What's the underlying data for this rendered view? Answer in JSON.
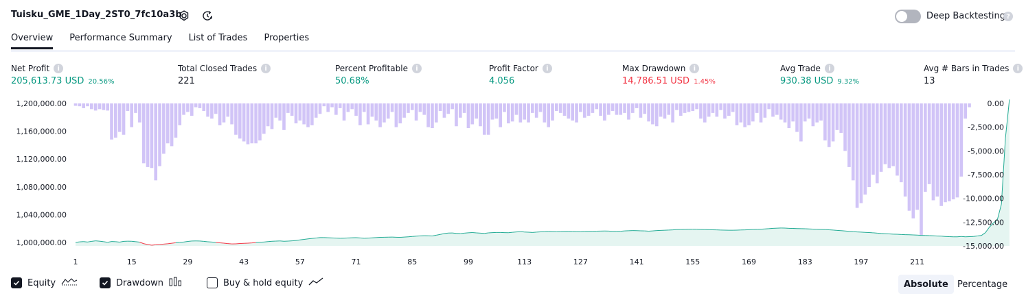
{
  "header": {
    "title": "Tuisku_GME_1Day_2ST0_7fc10a3b",
    "deep_backtesting_label": "Deep Backtesting"
  },
  "tabs": [
    {
      "label": "Overview",
      "active": true
    },
    {
      "label": "Performance Summary",
      "active": false
    },
    {
      "label": "List of Trades",
      "active": false
    },
    {
      "label": "Properties",
      "active": false
    }
  ],
  "stats": [
    {
      "label": "Net Profit",
      "value": "205,613.73 USD",
      "pct": "20.56%",
      "color": "green"
    },
    {
      "label": "Total Closed Trades",
      "value": "221",
      "pct": "",
      "color": "default"
    },
    {
      "label": "Percent Profitable",
      "value": "50.68%",
      "pct": "",
      "color": "green"
    },
    {
      "label": "Profit Factor",
      "value": "4.056",
      "pct": "",
      "color": "green"
    },
    {
      "label": "Max Drawdown",
      "value": "14,786.51 USD",
      "pct": "1.45%",
      "color": "red"
    },
    {
      "label": "Avg Trade",
      "value": "930.38 USD",
      "pct": "9.32%",
      "color": "green"
    },
    {
      "label": "Avg # Bars in Trades",
      "value": "13",
      "pct": "",
      "color": "default"
    }
  ],
  "chart_data": {
    "type": "bar+area",
    "left_axis_ticks": [
      "1,200,000.00",
      "1,160,000.00",
      "1,120,000.00",
      "1,080,000.00",
      "1,040,000.00",
      "1,000,000.00"
    ],
    "right_axis_ticks": [
      "0.00",
      "-2,500.00",
      "-5,000.00",
      "-7,500.00",
      "-10,000.00",
      "-12,500.00",
      "-15,000.00"
    ],
    "x_ticks": [
      "1",
      "15",
      "29",
      "43",
      "57",
      "71",
      "85",
      "99",
      "113",
      "127",
      "141",
      "155",
      "169",
      "183",
      "197",
      "211"
    ],
    "left_ylim": [
      995000,
      1200000
    ],
    "right_ylim": [
      -15000,
      0
    ],
    "trade_range": [
      1,
      221
    ],
    "series": [
      {
        "name": "Drawdown",
        "color": "#d1c4f7",
        "unit": "USD",
        "values": [
          -250,
          -300,
          -500,
          -300,
          -600,
          -750,
          -600,
          -700,
          -750,
          -3800,
          -3600,
          -3000,
          -3300,
          -800,
          -2500,
          -1000,
          -2000,
          -6300,
          -6700,
          -6800,
          -8100,
          -6600,
          -5300,
          -4200,
          -4500,
          -3600,
          -2300,
          -1200,
          -900,
          -1300,
          -400,
          -500,
          -800,
          -1400,
          -1600,
          -1100,
          -2300,
          -2000,
          -1400,
          -2200,
          -3300,
          -3700,
          -4000,
          -4300,
          -4200,
          -4200,
          -3900,
          -3200,
          -2400,
          -2700,
          -1500,
          -1800,
          -2800,
          -1000,
          -1300,
          -2100,
          -1800,
          -2200,
          -2500,
          -2300,
          -1500,
          -1100,
          -300,
          -900,
          -400,
          -1200,
          -500,
          -1800,
          -900,
          -600,
          -1300,
          -2300,
          -900,
          -2200,
          -1400,
          -1800,
          -2500,
          -2000,
          -1600,
          -900,
          -2500,
          -2100,
          -1500,
          -1000,
          -700,
          -1800,
          -900,
          -1200,
          -2500,
          -2600,
          -2000,
          -800,
          -1500,
          -1100,
          -600,
          -2400,
          -1500,
          -1000,
          -2600,
          -2200,
          -1600,
          -2400,
          -3300,
          -3300,
          -1700,
          -1600,
          -2500,
          -900,
          -2100,
          -1900,
          -1200,
          -2000,
          -1700,
          -2000,
          -1000,
          -1500,
          -900,
          -2000,
          -2500,
          -1800,
          -800,
          -1000,
          -1300,
          -1600,
          -1800,
          -2000,
          -900,
          -1500,
          -1300,
          -1000,
          -600,
          -1300,
          -1800,
          -1200,
          -800,
          -1200,
          -1200,
          -1000,
          -1700,
          -1000,
          -500,
          -1500,
          -1100,
          -1900,
          -2200,
          -2400,
          -1400,
          -1600,
          -1200,
          -2000,
          -700,
          -1300,
          -1000,
          -900,
          -800,
          -600,
          -1600,
          -2000,
          -1400,
          -1000,
          -1400,
          -700,
          -1600,
          -1300,
          -900,
          -2300,
          -2000,
          -2500,
          -2300,
          -1900,
          -1000,
          -2000,
          -1500,
          -600,
          -1400,
          -1200,
          -1700,
          -2000,
          -2600,
          -1900,
          -3000,
          -4000,
          -1900,
          -1600,
          -2400,
          -2000,
          -1800,
          -3900,
          -4600,
          -4000,
          -2800,
          -3100,
          -5000,
          -6700,
          -8100,
          -11000,
          -10500,
          -9600,
          -8800,
          -7500,
          -8400,
          -7200,
          -6400,
          -6800,
          -6600,
          -7600,
          -8300,
          -9800,
          -11300,
          -12100,
          -11200,
          -14700,
          -9300,
          -8500,
          -10200,
          -9800,
          -10800,
          -10400,
          -10300,
          -10100,
          -9900,
          -7700,
          -1600,
          -400
        ]
      },
      {
        "name": "Equity",
        "color": "#22ab94",
        "unit": "USD",
        "values": [
          1000000,
          1000800,
          1001200,
          1000600,
          1001500,
          1002300,
          1001800,
          1001000,
          1000200,
          1001300,
          1001000,
          1000400,
          1001500,
          1001800,
          1001600,
          1001000,
          1000400,
          998200,
          997000,
          996000,
          996600,
          997000,
          997600,
          998100,
          998800,
          999500,
          1000000,
          1000600,
          1001400,
          1002000,
          1002200,
          1002000,
          1001500,
          1000900,
          1000600,
          1000000,
          999400,
          998900,
          998300,
          997800,
          997900,
          998500,
          998700,
          998900,
          999300,
          999800,
          1000300,
          1000600,
          1001200,
          1001700,
          1001900,
          1002200,
          1001600,
          1001900,
          1002300,
          1002800,
          1003600,
          1004400,
          1005100,
          1005700,
          1006300,
          1006900,
          1007000,
          1006700,
          1006500,
          1006200,
          1006000,
          1006100,
          1006400,
          1006700,
          1006800,
          1006400,
          1006000,
          1006200,
          1006600,
          1007000,
          1007300,
          1007500,
          1007600,
          1007700,
          1007500,
          1007300,
          1007700,
          1008100,
          1008500,
          1009000,
          1009400,
          1009700,
          1009500,
          1009300,
          1010400,
          1011500,
          1012700,
          1013500,
          1013600,
          1013000,
          1012800,
          1013400,
          1013900,
          1014200,
          1013700,
          1013300,
          1013000,
          1013700,
          1014100,
          1014400,
          1014300,
          1014100,
          1014000,
          1014600,
          1015100,
          1015400,
          1015000,
          1014700,
          1014300,
          1014800,
          1015200,
          1015500,
          1015900,
          1015400,
          1015200,
          1015600,
          1015800,
          1016000,
          1015700,
          1015500,
          1015300,
          1015800,
          1016000,
          1016100,
          1016200,
          1016300,
          1016400,
          1016300,
          1016000,
          1015900,
          1016100,
          1016500,
          1016800,
          1017000,
          1016900,
          1016700,
          1016500,
          1016200,
          1016600,
          1017000,
          1017300,
          1017500,
          1017800,
          1018000,
          1018500,
          1018600,
          1018800,
          1019000,
          1019100,
          1019000,
          1018700,
          1018500,
          1018300,
          1018200,
          1018000,
          1017800,
          1017700,
          1017600,
          1017500,
          1017700,
          1017900,
          1018000,
          1018300,
          1018600,
          1018800,
          1019000,
          1019400,
          1019800,
          1020200,
          1020500,
          1020700,
          1020600,
          1020300,
          1020100,
          1019900,
          1019800,
          1019600,
          1019400,
          1019100,
          1018900,
          1018700,
          1018500,
          1018200,
          1017800,
          1017300,
          1016900,
          1016400,
          1015900,
          1015500,
          1015100,
          1014800,
          1014500,
          1014200,
          1013800,
          1013300,
          1012900,
          1012500,
          1012200,
          1011900,
          1011700,
          1011400,
          1011200,
          1011000,
          1010800,
          1010500,
          1010200,
          1010000,
          1009800,
          1009500,
          1009200,
          1009000,
          1008600,
          1008300,
          1008000,
          1008100,
          1008600,
          1008000,
          1008300,
          1008600,
          1009300,
          1010000,
          1014000,
          1022000,
          1028000,
          1033000,
          1055000,
          1150000,
          1205613.73
        ]
      }
    ],
    "legend": [
      {
        "name": "Equity",
        "checked": true
      },
      {
        "name": "Drawdown",
        "checked": true
      },
      {
        "name": "Buy & hold equity",
        "checked": false
      }
    ]
  },
  "footer": {
    "absolute_label": "Absolute",
    "percentage_label": "Percentage"
  }
}
